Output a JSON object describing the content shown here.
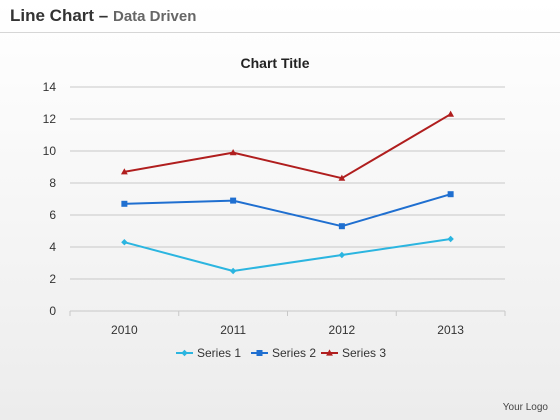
{
  "header": {
    "title": "Line Chart",
    "dash": "–",
    "subtitle": "Data Driven"
  },
  "logo_text": "Your Logo",
  "chart_data": {
    "type": "line",
    "title": "Chart Title",
    "xlabel": "",
    "ylabel": "",
    "categories": [
      "2010",
      "2011",
      "2012",
      "2013"
    ],
    "ylim": [
      0,
      14
    ],
    "yticks": [
      0,
      2,
      4,
      6,
      8,
      10,
      12,
      14
    ],
    "grid": true,
    "legend_position": "bottom",
    "series": [
      {
        "name": "Series 1",
        "values": [
          4.3,
          2.5,
          3.5,
          4.5
        ],
        "color": "#2bb5e0",
        "marker": "diamond"
      },
      {
        "name": "Series 2",
        "values": [
          6.7,
          6.9,
          5.3,
          7.3
        ],
        "color": "#1f6fd0",
        "marker": "square"
      },
      {
        "name": "Series 3",
        "values": [
          8.7,
          9.9,
          8.3,
          12.3
        ],
        "color": "#b01e1e",
        "marker": "triangle"
      }
    ]
  }
}
